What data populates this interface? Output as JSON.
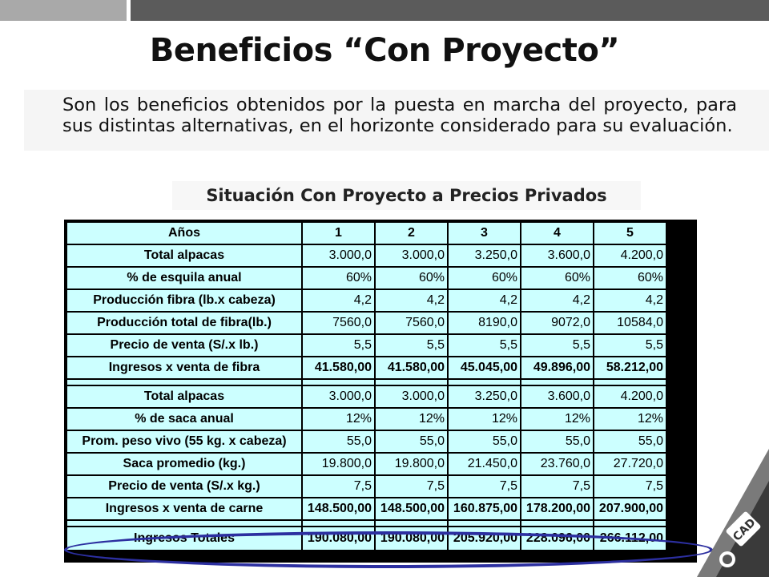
{
  "title": "Beneficios “Con Proyecto”",
  "description": "Son los beneficios obtenidos por la puesta en marcha del proyecto, para sus distintas alternativas, en el horizonte considerado para su evaluación.",
  "subtitle": "Situación Con Proyecto a Precios Privados",
  "table": {
    "header": [
      "Años",
      "1",
      "2",
      "3",
      "4",
      "5"
    ],
    "rows": [
      [
        "Total alpacas",
        "3.000,0",
        "3.000,0",
        "3.250,0",
        "3.600,0",
        "4.200,0"
      ],
      [
        "% de esquila anual",
        "60%",
        "60%",
        "60%",
        "60%",
        "60%"
      ],
      [
        "Producción fibra (lb.x cabeza)",
        "4,2",
        "4,2",
        "4,2",
        "4,2",
        "4,2"
      ],
      [
        "Producción total de fibra(lb.)",
        "7560,0",
        "7560,0",
        "8190,0",
        "9072,0",
        "10584,0"
      ],
      [
        "Precio de venta (S/.x lb.)",
        "5,5",
        "5,5",
        "5,5",
        "5,5",
        "5,5"
      ],
      [
        "Ingresos x venta de fibra",
        "41.580,00",
        "41.580,00",
        "45.045,00",
        "49.896,00",
        "58.212,00"
      ],
      [
        "Total alpacas",
        "3.000,0",
        "3.000,0",
        "3.250,0",
        "3.600,0",
        "4.200,0"
      ],
      [
        "% de saca anual",
        "12%",
        "12%",
        "12%",
        "12%",
        "12%"
      ],
      [
        "Prom. peso vivo (55 kg. x cabeza)",
        "55,0",
        "55,0",
        "55,0",
        "55,0",
        "55,0"
      ],
      [
        "Saca promedio (kg.)",
        "19.800,0",
        "19.800,0",
        "21.450,0",
        "23.760,0",
        "27.720,0"
      ],
      [
        "Precio de venta (S/.x kg.)",
        "7,5",
        "7,5",
        "7,5",
        "7,5",
        "7,5"
      ],
      [
        "Ingresos x venta de carne",
        "148.500,00",
        "148.500,00",
        "160.875,00",
        "178.200,00",
        "207.900,00"
      ],
      [
        "Ingresos Totales",
        "190.080,00",
        "190.080,00",
        "205.920,00",
        "228.096,00",
        "266.112,00"
      ]
    ]
  },
  "colors": {
    "table_bg": "#ccffff",
    "ellipse": "#2c2fa0",
    "top_bar_dark": "#5b5b5b",
    "top_bar_light": "#a9a9a9"
  },
  "logo_text": "CAD"
}
